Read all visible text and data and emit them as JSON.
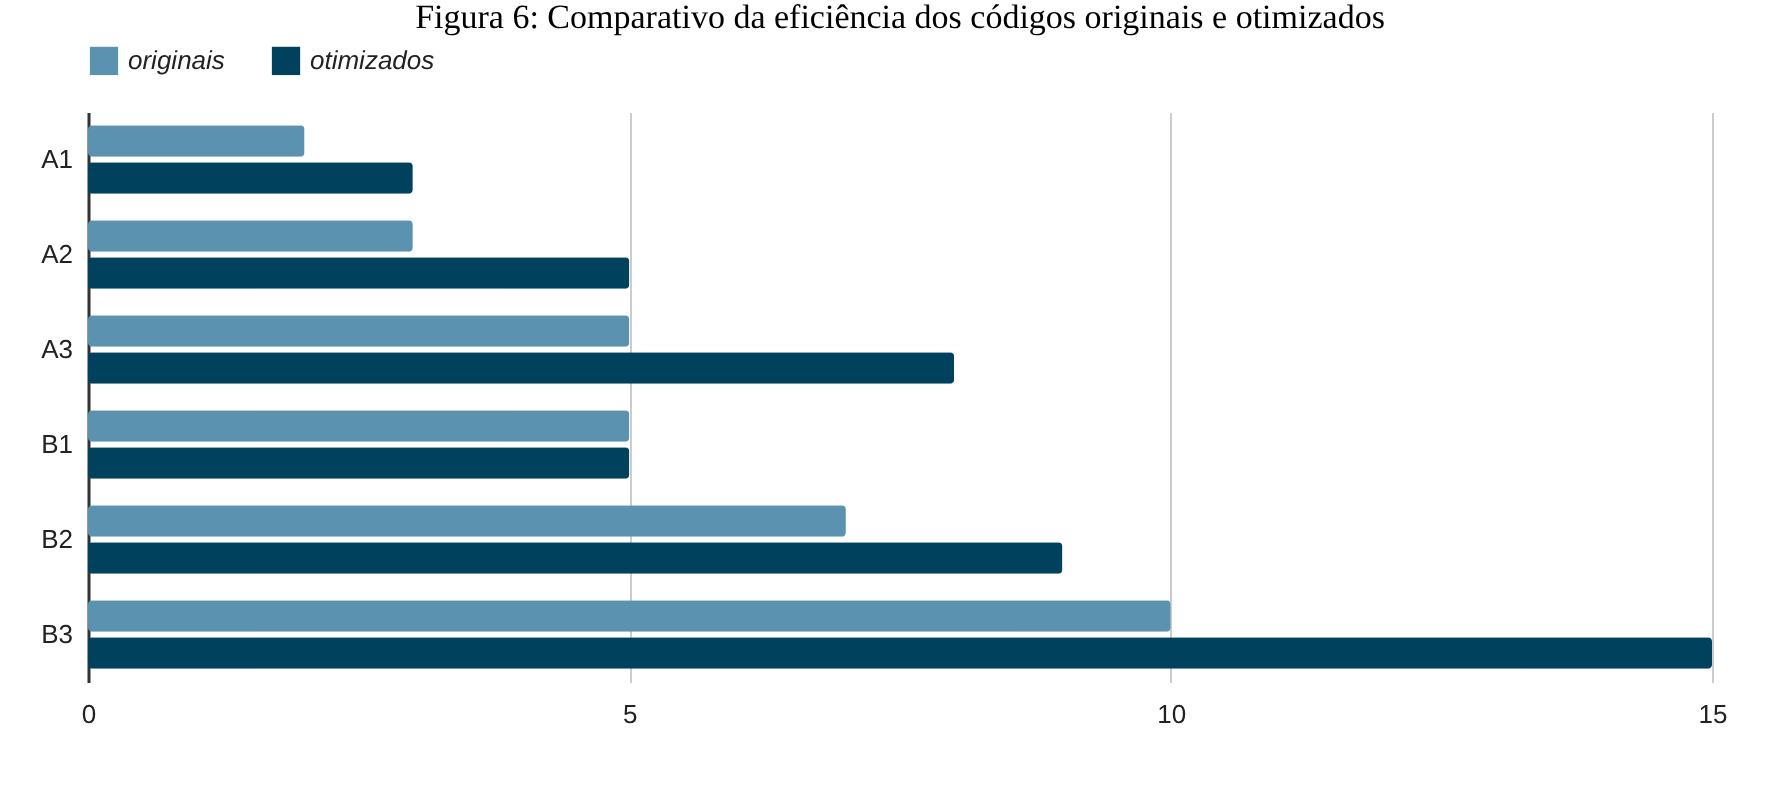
{
  "chart_data": {
    "type": "bar",
    "orientation": "horizontal",
    "title": "Figura 6: Comparativo da eficiência dos códigos originais e otimizados",
    "categories": [
      "A1",
      "A2",
      "A3",
      "B1",
      "B2",
      "B3"
    ],
    "series": [
      {
        "name": "originais",
        "color": "#5b92b0",
        "values": [
          2,
          3,
          5,
          5,
          7,
          10
        ]
      },
      {
        "name": "otimizados",
        "color": "#00425e",
        "values": [
          3,
          5,
          8,
          5,
          9,
          15
        ]
      }
    ],
    "xlim": [
      0,
      15
    ],
    "xticks": [
      0,
      5,
      10,
      15
    ],
    "grid": "x",
    "legend": "top"
  }
}
